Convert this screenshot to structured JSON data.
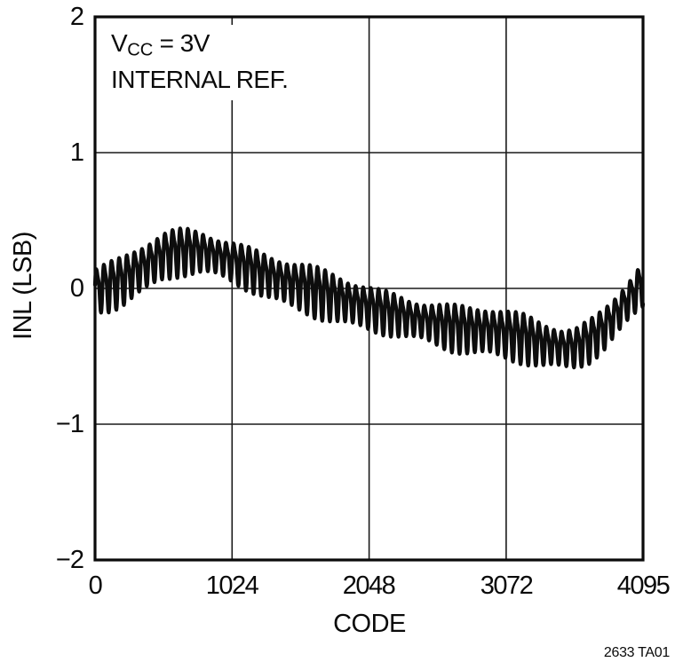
{
  "figure": {
    "caption": "2633 TA01",
    "annotation": {
      "vcc_prefix": "V",
      "vcc_sub": "CC",
      "vcc_rest": " = 3V",
      "line2": "INTERNAL REF."
    }
  },
  "chart_data": {
    "type": "line",
    "title": "",
    "xlabel": "CODE",
    "ylabel": "INL (LSB)",
    "xlim": [
      0,
      4095
    ],
    "ylim": [
      -2,
      2
    ],
    "xticks": [
      0,
      1024,
      2048,
      3072,
      4095
    ],
    "yticks": [
      2,
      1,
      0,
      -1,
      -2
    ],
    "xtick_labels": [
      "0",
      "1024",
      "2048",
      "3072",
      "4095"
    ],
    "ytick_labels": [
      "2",
      "1",
      "0",
      "−1",
      "−2"
    ],
    "grid": true,
    "frame_color": "#0a0a0a",
    "grid_color": "#1a1a1a",
    "line_color": "#0d0d0d",
    "series": [
      {
        "name": "INL",
        "envelope": [
          [
            0,
            0.0
          ],
          [
            100,
            0.03
          ],
          [
            200,
            0.07
          ],
          [
            300,
            0.13
          ],
          [
            400,
            0.19
          ],
          [
            500,
            0.25
          ],
          [
            600,
            0.28
          ],
          [
            700,
            0.29
          ],
          [
            800,
            0.28
          ],
          [
            900,
            0.25
          ],
          [
            1024,
            0.21
          ],
          [
            1150,
            0.16
          ],
          [
            1300,
            0.1
          ],
          [
            1450,
            0.05
          ],
          [
            1600,
            0.01
          ],
          [
            1750,
            -0.04
          ],
          [
            1900,
            -0.09
          ],
          [
            2048,
            -0.13
          ],
          [
            2200,
            -0.17
          ],
          [
            2350,
            -0.21
          ],
          [
            2500,
            -0.24
          ],
          [
            2650,
            -0.27
          ],
          [
            2800,
            -0.29
          ],
          [
            2950,
            -0.3
          ],
          [
            3072,
            -0.32
          ],
          [
            3200,
            -0.35
          ],
          [
            3350,
            -0.4
          ],
          [
            3500,
            -0.43
          ],
          [
            3600,
            -0.42
          ],
          [
            3700,
            -0.37
          ],
          [
            3800,
            -0.29
          ],
          [
            3900,
            -0.18
          ],
          [
            4000,
            -0.06
          ],
          [
            4095,
            0.05
          ]
        ],
        "ripple": {
          "period_codes": 57,
          "amplitude_lsb": 0.14,
          "harmonic2": 0.3
        }
      }
    ]
  }
}
